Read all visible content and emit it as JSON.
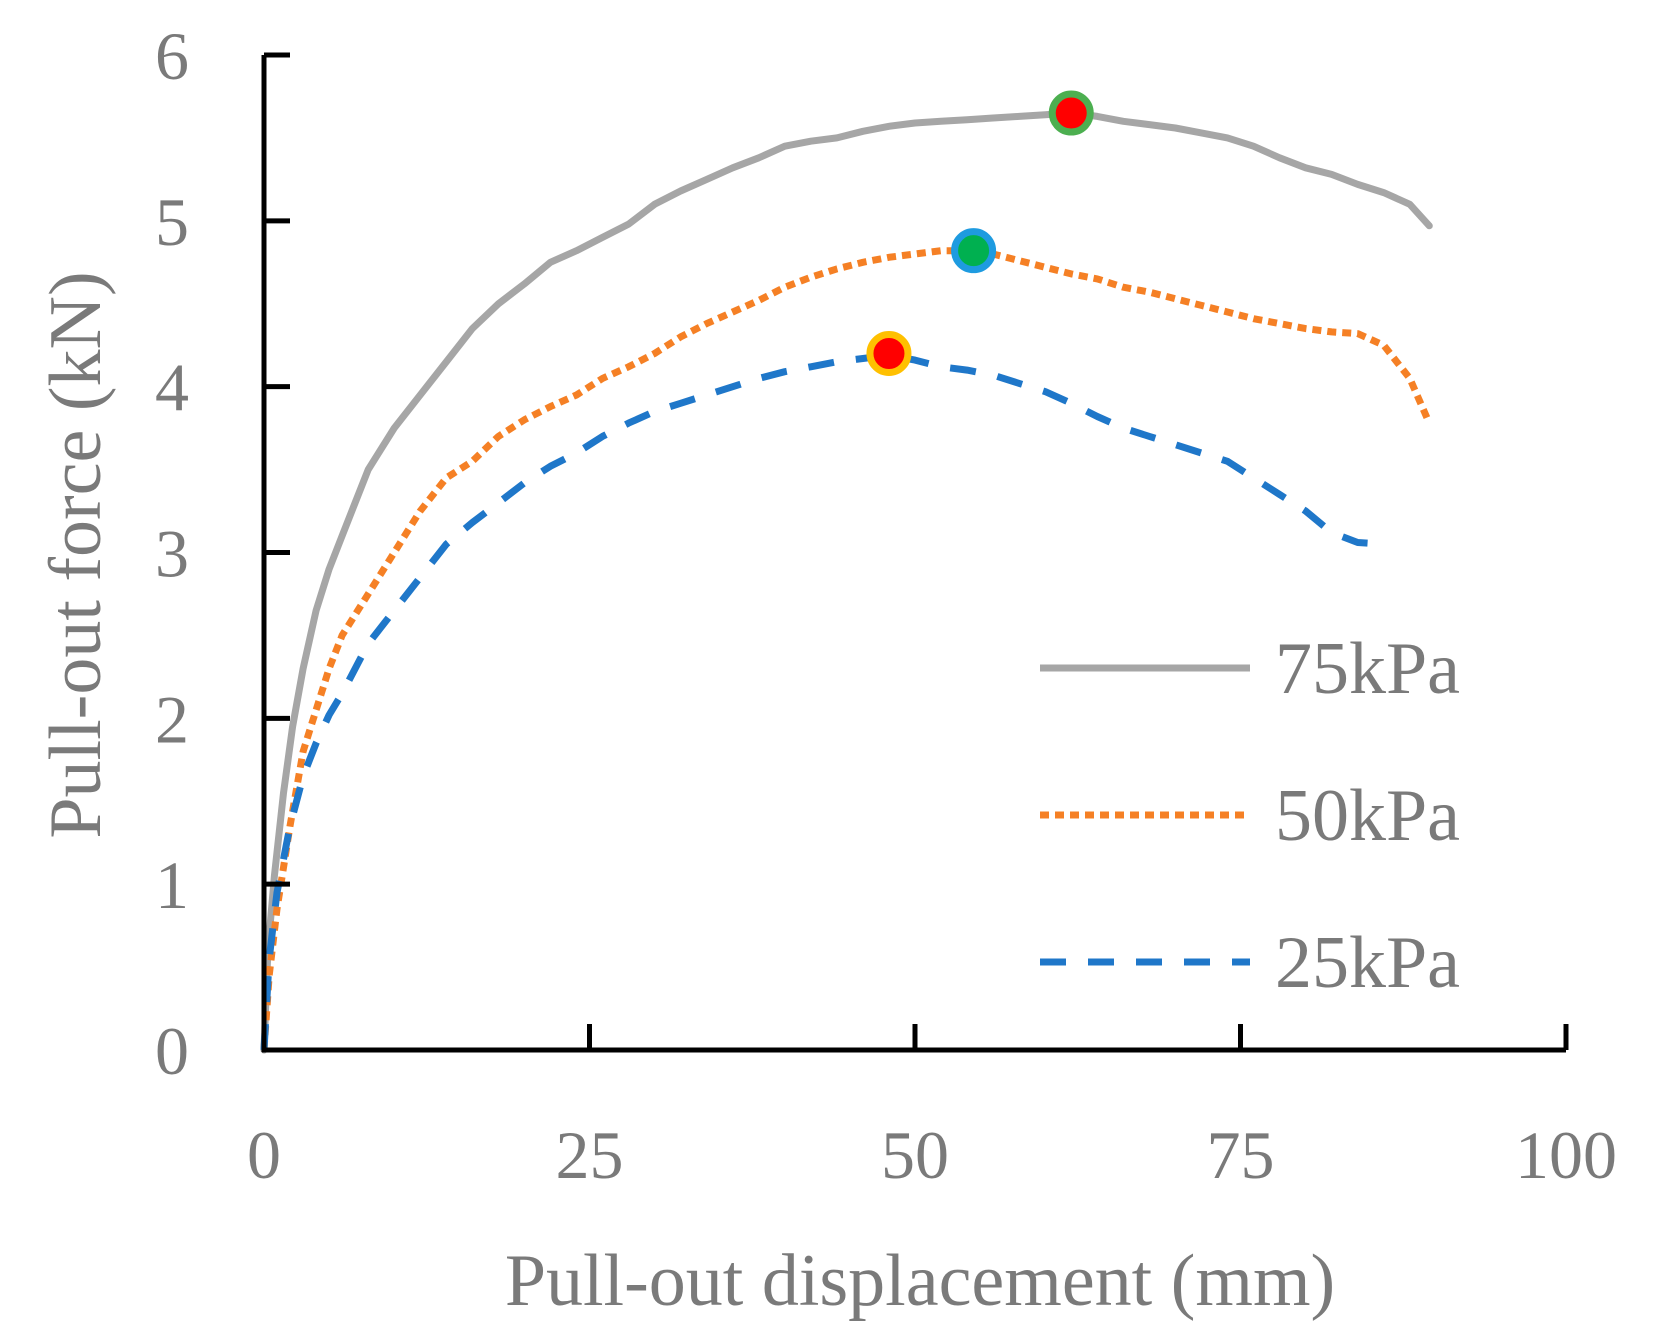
{
  "chart_data": {
    "type": "line",
    "title": "",
    "xlabel": "Pull-out displacement (mm)",
    "ylabel": "Pull-out force (kN)",
    "xlim": [
      0,
      100
    ],
    "ylim": [
      0,
      6
    ],
    "xticks": [
      0,
      25,
      50,
      75,
      100
    ],
    "yticks": [
      0,
      1,
      2,
      3,
      4,
      5,
      6
    ],
    "grid": false,
    "legend_position": "right",
    "series": [
      {
        "name": "75kPa",
        "color": "#a6a6a6",
        "dash": "solid",
        "x": [
          0,
          0.3,
          0.8,
          1.5,
          2.2,
          3,
          4,
          5,
          6,
          7,
          8,
          10,
          12,
          14,
          16,
          18,
          20,
          22,
          24,
          26,
          28,
          30,
          32,
          34,
          36,
          38,
          40,
          42,
          44,
          46,
          48,
          50,
          52,
          54,
          56,
          58,
          60,
          62,
          64,
          66,
          68,
          70,
          72,
          74,
          76,
          78,
          80,
          82,
          84,
          86,
          88,
          89.5
        ],
        "y": [
          0,
          0.6,
          1.05,
          1.55,
          1.95,
          2.3,
          2.65,
          2.9,
          3.1,
          3.3,
          3.5,
          3.75,
          3.95,
          4.15,
          4.35,
          4.5,
          4.62,
          4.75,
          4.82,
          4.9,
          4.98,
          5.1,
          5.18,
          5.25,
          5.32,
          5.38,
          5.45,
          5.48,
          5.5,
          5.54,
          5.57,
          5.59,
          5.6,
          5.61,
          5.62,
          5.63,
          5.64,
          5.65,
          5.63,
          5.6,
          5.58,
          5.56,
          5.53,
          5.5,
          5.45,
          5.38,
          5.32,
          5.28,
          5.22,
          5.17,
          5.1,
          4.97
        ]
      },
      {
        "name": "50kPa",
        "color": "#f58025",
        "dash": "dotted",
        "x": [
          0,
          0.4,
          1,
          2,
          3,
          4,
          5,
          6,
          8,
          10,
          12,
          14,
          16,
          18,
          20,
          22,
          24,
          26,
          28,
          30,
          32,
          34,
          36,
          38,
          40,
          42,
          44,
          46,
          48,
          50,
          52,
          54,
          56,
          58,
          60,
          62,
          64,
          66,
          68,
          70,
          72,
          74,
          76,
          78,
          80,
          82,
          84,
          86,
          88,
          89.5
        ],
        "y": [
          0,
          0.45,
          0.85,
          1.35,
          1.8,
          2.05,
          2.3,
          2.5,
          2.75,
          3.0,
          3.25,
          3.45,
          3.55,
          3.7,
          3.8,
          3.88,
          3.95,
          4.05,
          4.12,
          4.2,
          4.3,
          4.38,
          4.45,
          4.52,
          4.6,
          4.66,
          4.71,
          4.75,
          4.78,
          4.8,
          4.82,
          4.82,
          4.8,
          4.76,
          4.72,
          4.68,
          4.65,
          4.6,
          4.57,
          4.53,
          4.49,
          4.45,
          4.41,
          4.38,
          4.35,
          4.33,
          4.32,
          4.25,
          4.05,
          3.78
        ]
      },
      {
        "name": "25kPa",
        "color": "#1f77c9",
        "dash": "dashed",
        "x": [
          0,
          0.4,
          1,
          2,
          3,
          4,
          5,
          6,
          8,
          10,
          12,
          14,
          16,
          18,
          20,
          22,
          24,
          26,
          28,
          30,
          32,
          34,
          36,
          38,
          40,
          42,
          44,
          46,
          48,
          50,
          52,
          54,
          56,
          58,
          60,
          62,
          64,
          66,
          68,
          70,
          72,
          74,
          76,
          78,
          80,
          82,
          84,
          86
        ],
        "y": [
          0,
          0.55,
          0.95,
          1.35,
          1.65,
          1.85,
          2.02,
          2.15,
          2.45,
          2.65,
          2.85,
          3.05,
          3.18,
          3.3,
          3.42,
          3.52,
          3.6,
          3.7,
          3.78,
          3.85,
          3.9,
          3.95,
          4.0,
          4.05,
          4.09,
          4.12,
          4.15,
          4.17,
          4.19,
          4.16,
          4.12,
          4.1,
          4.07,
          4.02,
          3.97,
          3.9,
          3.82,
          3.75,
          3.7,
          3.65,
          3.6,
          3.55,
          3.45,
          3.35,
          3.25,
          3.12,
          3.06,
          3.05
        ]
      }
    ],
    "peaks": [
      {
        "series": "75kPa",
        "x": 62,
        "y": 5.65,
        "fill": "#ff0000",
        "ring": "#4caf50"
      },
      {
        "series": "50kPa",
        "x": 54.5,
        "y": 4.82,
        "fill": "#00b050",
        "ring": "#1e9be0"
      },
      {
        "series": "25kPa",
        "x": 48,
        "y": 4.2,
        "fill": "#ff0000",
        "ring": "#ffc000"
      }
    ],
    "axis_color": "#000000",
    "text_color": "#7a7a7a"
  }
}
